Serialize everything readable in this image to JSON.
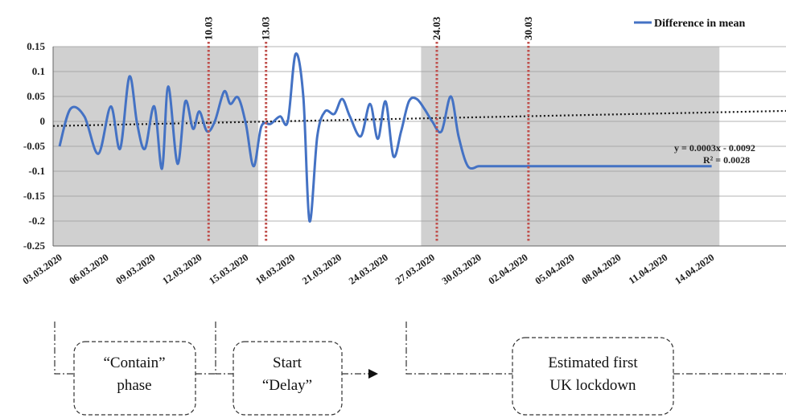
{
  "chart_data": {
    "type": "line",
    "title": "",
    "xlabel": "",
    "ylabel": "",
    "ylim": [
      -0.25,
      0.15
    ],
    "yticks": [
      "0.15",
      "0.1",
      "0.05",
      "0",
      "-0.05",
      "-0.1",
      "-0.15",
      "-0.2",
      "-0.25"
    ],
    "ytick_values": [
      0.15,
      0.1,
      0.05,
      0,
      -0.05,
      -0.1,
      -0.15,
      -0.2,
      -0.25
    ],
    "xticks": [
      "03.03.2020",
      "06.03.2020",
      "09.03.2020",
      "12.03.2020",
      "15.03.2020",
      "18.03.2020",
      "21.03.2020",
      "24.03.2020",
      "27.03.2020",
      "30.03.2020",
      "02.04.2020",
      "05.04.2020",
      "08.04.2020",
      "11.04.2020",
      "14.04.2020"
    ],
    "grid": "horizontal",
    "legend": {
      "position": "top-right",
      "entries": [
        "Difference in mean"
      ]
    },
    "series": [
      {
        "name": "Difference in mean",
        "color": "#4472C4",
        "x": [
          0,
          0.7,
          1.6,
          2.5,
          3.3,
          3.9,
          4.5,
          5.0,
          5.5,
          6.1,
          6.6,
          7.0,
          7.6,
          8.1,
          8.6,
          9.0,
          9.5,
          10.0,
          10.6,
          11.0,
          11.5,
          12.0,
          12.5,
          13.0,
          13.6,
          14.2,
          14.7,
          15.2,
          15.7,
          16.1,
          16.6,
          17.1,
          17.7,
          18.2,
          18.7,
          19.4,
          20.0,
          20.5,
          21.0,
          21.5,
          22.0,
          22.5,
          23.0,
          23.5,
          24.0,
          24.6,
          25.2,
          25.7,
          26.3,
          27.0,
          27.5,
          28.0,
          28.4,
          28.8,
          29.3,
          29.8,
          30.3,
          30.8,
          31.4,
          31.9,
          32.5,
          33.0,
          33.5,
          34.0,
          34.5,
          35.0,
          35.6,
          36.1,
          36.6,
          37.1,
          37.6,
          38.2,
          38.8,
          39.2,
          39.6,
          40.1,
          40.6,
          41.1,
          41.6,
          42.0
        ],
        "y": [
          -0.05,
          0.025,
          0.01,
          -0.065,
          0.03,
          -0.055,
          0.09,
          -0.005,
          -0.055,
          0.03,
          -0.095,
          0.07,
          -0.085,
          0.04,
          -0.015,
          0.02,
          -0.02,
          0.0,
          0.06,
          0.035,
          0.048,
          -0.005,
          -0.09,
          -0.01,
          -0.005,
          0.01,
          0.0,
          0.135,
          0.05,
          -0.2,
          -0.03,
          0.02,
          0.015,
          0.045,
          0.01,
          -0.03,
          0.035,
          -0.035,
          0.04,
          -0.07,
          -0.02,
          0.04,
          0.045,
          0.025,
          0.0,
          -0.02,
          0.05,
          -0.03,
          -0.09,
          -0.09,
          -0.09,
          -0.09,
          -0.09,
          -0.09,
          -0.09,
          -0.09,
          -0.09,
          -0.09,
          -0.09,
          -0.09,
          -0.09,
          -0.09,
          -0.09,
          -0.09,
          -0.09,
          -0.09,
          -0.09,
          -0.09,
          -0.09,
          -0.09,
          -0.09,
          -0.09,
          -0.09,
          -0.09,
          -0.09,
          -0.09,
          -0.09,
          -0.09,
          -0.09,
          -0.09
        ]
      }
    ],
    "trendline": {
      "equation": "y = 0.0003x - 0.0092",
      "r2": "R² = 0.0028",
      "slope": 0.0003,
      "intercept": -0.0092
    },
    "events": [
      {
        "label": "10.03",
        "x": 9.6
      },
      {
        "label": "13.03",
        "x": 13.3
      },
      {
        "label": "24.03",
        "x": 24.3
      },
      {
        "label": "30.03",
        "x": 30.2
      }
    ],
    "shaded_regions": [
      {
        "from": 0,
        "to": 12.8
      },
      {
        "from": 23.7,
        "to": 42.5
      }
    ],
    "phases": [
      {
        "line1": "“Contain”",
        "line2": "phase"
      },
      {
        "line1": "Start",
        "line2": "“Delay”"
      },
      {
        "line1": "Estimated first",
        "line2": "UK lockdown"
      }
    ],
    "colors": {
      "line": "#4472C4",
      "shade": "#D0D0D0",
      "event_line": "#C0504D",
      "trend": "#1a1a1a"
    }
  }
}
